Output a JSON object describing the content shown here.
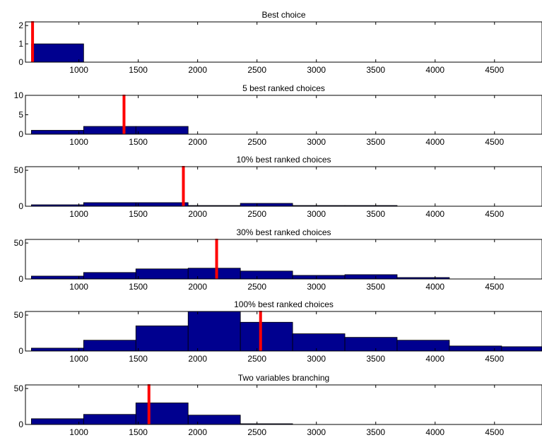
{
  "chart_data": [
    {
      "type": "bar",
      "title": "Best choice",
      "bin_edges": [
        600,
        1040
      ],
      "counts": [
        1
      ],
      "ylim": [
        0,
        2.2
      ],
      "yticks": [
        0,
        1,
        2
      ],
      "xlim": [
        550,
        4900
      ],
      "xticks": [
        1000,
        1500,
        2000,
        2500,
        3000,
        3500,
        4000,
        4500
      ],
      "marker_x": 610
    },
    {
      "type": "bar",
      "title": "5 best ranked choices",
      "bin_edges": [
        600,
        1040,
        1480,
        1920
      ],
      "counts": [
        1,
        2,
        2
      ],
      "ylim": [
        0,
        10
      ],
      "yticks": [
        0,
        5,
        10
      ],
      "xlim": [
        550,
        4900
      ],
      "xticks": [
        1000,
        1500,
        2000,
        2500,
        3000,
        3500,
        4000,
        4500
      ],
      "marker_x": 1380
    },
    {
      "type": "bar",
      "title": "10% best ranked choices",
      "bin_edges": [
        600,
        1040,
        1480,
        1920,
        2360,
        2800,
        3240,
        3680
      ],
      "counts": [
        2,
        5,
        5,
        1,
        4,
        1,
        1
      ],
      "ylim": [
        0,
        55
      ],
      "yticks": [
        0,
        50
      ],
      "xlim": [
        550,
        4900
      ],
      "xticks": [
        1000,
        1500,
        2000,
        2500,
        3000,
        3500,
        4000,
        4500
      ],
      "marker_x": 1880
    },
    {
      "type": "bar",
      "title": "30% best ranked choices",
      "bin_edges": [
        600,
        1040,
        1480,
        1920,
        2360,
        2800,
        3240,
        3680,
        4120
      ],
      "counts": [
        4,
        9,
        14,
        15,
        11,
        5,
        6,
        2
      ],
      "ylim": [
        0,
        55
      ],
      "yticks": [
        0,
        50
      ],
      "xlim": [
        550,
        4900
      ],
      "xticks": [
        1000,
        1500,
        2000,
        2500,
        3000,
        3500,
        4000,
        4500
      ],
      "marker_x": 2160
    },
    {
      "type": "bar",
      "title": "100% best ranked choices",
      "bin_edges": [
        600,
        1040,
        1480,
        1920,
        2360,
        2800,
        3240,
        3680,
        4120,
        4560,
        4900
      ],
      "counts": [
        4,
        15,
        35,
        55,
        40,
        24,
        19,
        15,
        7,
        6
      ],
      "ylim": [
        0,
        55
      ],
      "yticks": [
        0,
        50
      ],
      "xlim": [
        550,
        4900
      ],
      "xticks": [
        1000,
        1500,
        2000,
        2500,
        3000,
        3500,
        4000,
        4500
      ],
      "marker_x": 2530
    },
    {
      "type": "bar",
      "title": "Two variables branching",
      "bin_edges": [
        600,
        1040,
        1480,
        1920,
        2360,
        2800
      ],
      "counts": [
        8,
        14,
        30,
        13,
        1
      ],
      "ylim": [
        0,
        55
      ],
      "yticks": [
        0,
        50
      ],
      "xlim": [
        550,
        4900
      ],
      "xticks": [
        1000,
        1500,
        2000,
        2500,
        3000,
        3500,
        4000,
        4500
      ],
      "marker_x": 1590
    }
  ],
  "colors": {
    "bar_fill": "#00008f",
    "bar_edge": "#000000",
    "marker": "#ff0000"
  }
}
